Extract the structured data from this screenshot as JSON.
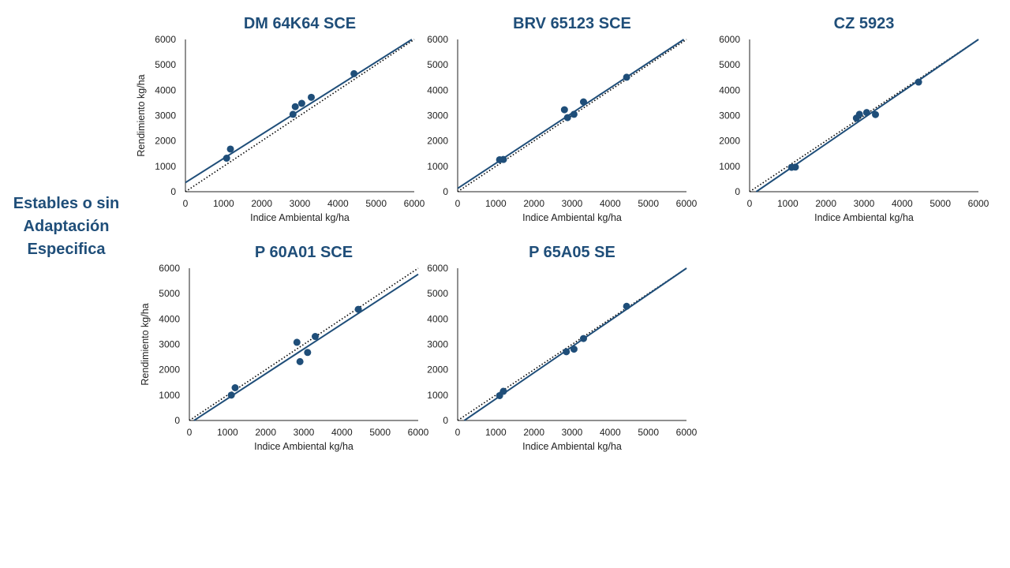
{
  "side_label": [
    "Estables o sin",
    "Adaptación",
    "Especifica"
  ],
  "colors": {
    "series": "#1f4e79",
    "reference": "#000000",
    "axis": "#222222"
  },
  "chart_data": [
    {
      "type": "scatter",
      "title": "DM 64K64 SCE",
      "xlabel": "Indice Ambiental kg/ha",
      "ylabel": "Rendimiento kg/ha",
      "xlim": [
        0,
        6000
      ],
      "ylim": [
        0,
        6000
      ],
      "xticks": [
        "0",
        "1000",
        "2000",
        "3000",
        "4000",
        "5000",
        "6000"
      ],
      "yticks": [
        "0",
        "1000",
        "2000",
        "3000",
        "4000",
        "5000",
        "6000"
      ],
      "points": [
        [
          1080,
          1320
        ],
        [
          1180,
          1680
        ],
        [
          2820,
          3050
        ],
        [
          2880,
          3350
        ],
        [
          3050,
          3480
        ],
        [
          3300,
          3720
        ],
        [
          4420,
          4650
        ]
      ],
      "fit_line": {
        "slope": 0.95,
        "intercept": 360
      },
      "reference_line": {
        "slope": 1,
        "intercept": 0
      }
    },
    {
      "type": "scatter",
      "title": "BRV 65123 SCE",
      "xlabel": "Indice Ambiental kg/ha",
      "ylabel": "",
      "xlim": [
        0,
        6000
      ],
      "ylim": [
        0,
        6000
      ],
      "xticks": [
        "0",
        "1000",
        "2000",
        "3000",
        "4000",
        "5000",
        "6000"
      ],
      "yticks": [
        "0",
        "1000",
        "2000",
        "3000",
        "4000",
        "5000",
        "6000"
      ],
      "points": [
        [
          1100,
          1260
        ],
        [
          1200,
          1270
        ],
        [
          2800,
          3230
        ],
        [
          2880,
          2920
        ],
        [
          3050,
          3050
        ],
        [
          3300,
          3540
        ],
        [
          4430,
          4510
        ]
      ],
      "fit_line": {
        "slope": 0.99,
        "intercept": 130
      },
      "reference_line": {
        "slope": 1,
        "intercept": 0
      }
    },
    {
      "type": "scatter",
      "title": "CZ 5923",
      "xlabel": "Indice Ambiental kg/ha",
      "ylabel": "",
      "xlim": [
        0,
        6000
      ],
      "ylim": [
        0,
        6000
      ],
      "xticks": [
        "0",
        "1000",
        "2000",
        "3000",
        "4000",
        "5000",
        "6000"
      ],
      "yticks": [
        "0",
        "1000",
        "2000",
        "3000",
        "4000",
        "5000",
        "6000"
      ],
      "points": [
        [
          1100,
          960
        ],
        [
          1200,
          970
        ],
        [
          2800,
          2900
        ],
        [
          2880,
          3050
        ],
        [
          3070,
          3120
        ],
        [
          3300,
          3040
        ],
        [
          4430,
          4320
        ]
      ],
      "fit_line": {
        "slope": 1.03,
        "intercept": -180
      },
      "reference_line": {
        "slope": 1,
        "intercept": 0
      }
    },
    {
      "type": "scatter",
      "title": "P 60A01 SCE",
      "xlabel": "Indice Ambiental kg/ha",
      "ylabel": "Rendimiento kg/ha",
      "xlim": [
        0,
        6000
      ],
      "ylim": [
        0,
        6000
      ],
      "xticks": [
        "0",
        "1000",
        "2000",
        "3000",
        "4000",
        "5000",
        "6000"
      ],
      "yticks": [
        "0",
        "1000",
        "2000",
        "3000",
        "4000",
        "5000",
        "6000"
      ],
      "points": [
        [
          1100,
          1000
        ],
        [
          1200,
          1290
        ],
        [
          2820,
          3080
        ],
        [
          2900,
          2320
        ],
        [
          3100,
          2680
        ],
        [
          3300,
          3310
        ],
        [
          4430,
          4380
        ]
      ],
      "fit_line": {
        "slope": 0.98,
        "intercept": -120
      },
      "reference_line": {
        "slope": 1,
        "intercept": 0
      }
    },
    {
      "type": "scatter",
      "title": "P 65A05 SE",
      "xlabel": "Indice Ambiental kg/ha",
      "ylabel": "",
      "xlim": [
        0,
        6000
      ],
      "ylim": [
        0,
        6000
      ],
      "xticks": [
        "0",
        "1000",
        "2000",
        "3000",
        "4000",
        "5000",
        "6000"
      ],
      "yticks": [
        "0",
        "1000",
        "2000",
        "3000",
        "4000",
        "5000",
        "6000"
      ],
      "points": [
        [
          1100,
          980
        ],
        [
          1200,
          1150
        ],
        [
          2850,
          2710
        ],
        [
          3050,
          2810
        ],
        [
          3300,
          3230
        ],
        [
          4430,
          4500
        ]
      ],
      "fit_line": {
        "slope": 1.03,
        "intercept": -180
      },
      "reference_line": {
        "slope": 1,
        "intercept": 0
      }
    }
  ]
}
